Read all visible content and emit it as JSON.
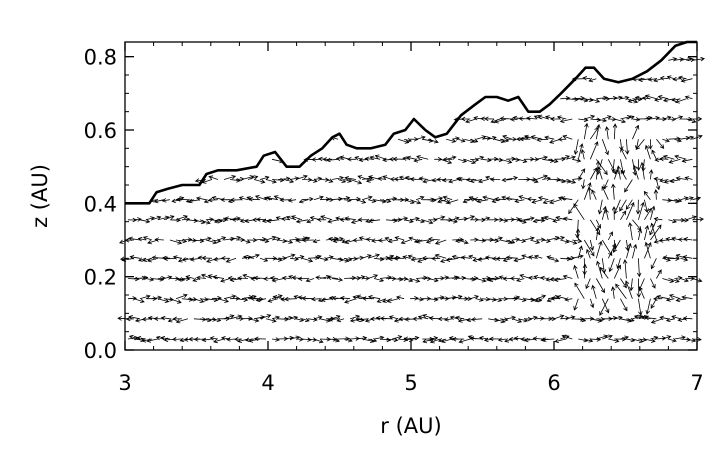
{
  "chart_data": {
    "type": "vector-field",
    "title": "",
    "xlabel": "r (AU)",
    "ylabel": "z (AU)",
    "xlim": [
      3,
      7
    ],
    "ylim": [
      0.0,
      0.84
    ],
    "xticks": [
      3,
      4,
      5,
      6,
      7
    ],
    "xtick_labels": [
      "3",
      "4",
      "5",
      "6",
      "7"
    ],
    "yticks": [
      0.0,
      0.2,
      0.4,
      0.6,
      0.8
    ],
    "ytick_labels": [
      "0.0",
      "0.2",
      "0.4",
      "0.6",
      "0.8"
    ],
    "grid": false,
    "colors": {
      "line": "#000000",
      "background": "#ffffff"
    },
    "surface": {
      "name": "",
      "r": [
        3.0,
        3.17,
        3.22,
        3.3,
        3.4,
        3.52,
        3.57,
        3.65,
        3.78,
        3.92,
        3.97,
        4.05,
        4.13,
        4.22,
        4.3,
        4.38,
        4.45,
        4.5,
        4.55,
        4.62,
        4.72,
        4.82,
        4.88,
        4.96,
        5.02,
        5.1,
        5.17,
        5.25,
        5.35,
        5.45,
        5.52,
        5.6,
        5.68,
        5.75,
        5.82,
        5.9,
        5.97,
        6.05,
        6.15,
        6.22,
        6.28,
        6.35,
        6.45,
        6.55,
        6.65,
        6.75,
        6.85,
        6.93,
        7.0
      ],
      "z": [
        0.4,
        0.4,
        0.43,
        0.44,
        0.45,
        0.45,
        0.48,
        0.49,
        0.49,
        0.5,
        0.53,
        0.54,
        0.5,
        0.5,
        0.53,
        0.55,
        0.58,
        0.59,
        0.56,
        0.55,
        0.55,
        0.56,
        0.59,
        0.6,
        0.63,
        0.6,
        0.58,
        0.59,
        0.64,
        0.67,
        0.69,
        0.69,
        0.68,
        0.69,
        0.65,
        0.65,
        0.67,
        0.7,
        0.74,
        0.77,
        0.77,
        0.74,
        0.73,
        0.74,
        0.76,
        0.79,
        0.83,
        0.84,
        0.84
      ]
    },
    "vectors": {
      "name": "",
      "rows_z": [
        0.03,
        0.085,
        0.14,
        0.195,
        0.25,
        0.3,
        0.355,
        0.41,
        0.465,
        0.52,
        0.575,
        0.63,
        0.685,
        0.74,
        0.79
      ],
      "r_start": 3.02,
      "r_step": 0.042,
      "r_end": 6.98
    }
  }
}
